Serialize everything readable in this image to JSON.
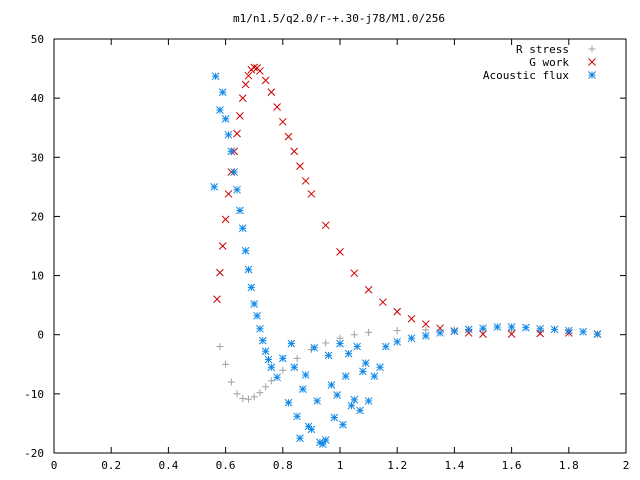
{
  "chart_data": {
    "type": "scatter",
    "title": "m1/n1.5/q2.0/r-+.30-j78/M1.0/256",
    "xlabel": "",
    "ylabel": "",
    "xlim": [
      0,
      2
    ],
    "ylim": [
      -20,
      50
    ],
    "x_ticks": [
      0,
      0.2,
      0.4,
      0.6,
      0.8,
      1,
      1.2,
      1.4,
      1.6,
      1.8,
      2
    ],
    "x_tick_labels": [
      "0",
      "0.2",
      "0.4",
      "0.6",
      "0.8",
      "1",
      "1.2",
      "1.4",
      "1.6",
      "1.8",
      "2"
    ],
    "y_ticks": [
      -20,
      -10,
      0,
      10,
      20,
      30,
      40,
      50
    ],
    "y_tick_labels": [
      "-20",
      "-10",
      "0",
      "10",
      "20",
      "30",
      "40",
      "50"
    ],
    "grid": false,
    "legend_position": "top-right",
    "series": [
      {
        "name": "R stress",
        "marker": "plus",
        "color": "#a0a0a0",
        "x": [
          0.58,
          0.6,
          0.62,
          0.64,
          0.66,
          0.68,
          0.7,
          0.72,
          0.74,
          0.76,
          0.8,
          0.85,
          0.9,
          0.95,
          1.0,
          1.05,
          1.1,
          1.2,
          1.3,
          1.4,
          1.5,
          1.6,
          1.7,
          1.8,
          1.9
        ],
        "y": [
          -2,
          -5,
          -8,
          -10,
          -10.8,
          -10.9,
          -10.5,
          -9.8,
          -8.8,
          -7.8,
          -6,
          -4,
          -2.5,
          -1.4,
          -0.6,
          0,
          0.4,
          0.7,
          0.8,
          0.8,
          0.8,
          0.7,
          0.5,
          0.3,
          0.1
        ]
      },
      {
        "name": "G work",
        "marker": "cross",
        "color": "#cc0000",
        "x": [
          0.57,
          0.58,
          0.59,
          0.6,
          0.61,
          0.62,
          0.63,
          0.64,
          0.65,
          0.66,
          0.67,
          0.68,
          0.69,
          0.7,
          0.71,
          0.72,
          0.74,
          0.76,
          0.78,
          0.8,
          0.82,
          0.84,
          0.86,
          0.88,
          0.9,
          0.95,
          1.0,
          1.05,
          1.1,
          1.15,
          1.2,
          1.25,
          1.3,
          1.35,
          1.4,
          1.45,
          1.5,
          1.6,
          1.7,
          1.8,
          1.9
        ],
        "y": [
          6,
          10.5,
          15,
          19.5,
          23.8,
          27.5,
          31,
          34,
          37,
          40,
          42.3,
          43.8,
          44.8,
          45.2,
          45.1,
          44.6,
          43,
          41,
          38.5,
          36,
          33.5,
          31,
          28.5,
          26,
          23.8,
          18.5,
          14,
          10.4,
          7.6,
          5.5,
          3.9,
          2.7,
          1.8,
          1.1,
          0.6,
          0.3,
          0.1,
          0.1,
          0.2,
          0.3,
          0.1
        ]
      },
      {
        "name": "Acoustic flux",
        "marker": "star",
        "color": "#0f87e6",
        "x": [
          0.56,
          0.565,
          0.58,
          0.59,
          0.6,
          0.61,
          0.62,
          0.63,
          0.64,
          0.65,
          0.66,
          0.67,
          0.68,
          0.69,
          0.7,
          0.71,
          0.72,
          0.73,
          0.74,
          0.75,
          0.76,
          0.78,
          0.8,
          0.82,
          0.83,
          0.84,
          0.85,
          0.86,
          0.87,
          0.88,
          0.89,
          0.9,
          0.91,
          0.92,
          0.93,
          0.94,
          0.95,
          0.96,
          0.97,
          0.98,
          0.99,
          1.0,
          1.01,
          1.02,
          1.03,
          1.04,
          1.05,
          1.06,
          1.07,
          1.08,
          1.09,
          1.1,
          1.12,
          1.14,
          1.16,
          1.2,
          1.25,
          1.3,
          1.35,
          1.4,
          1.45,
          1.5,
          1.55,
          1.6,
          1.65,
          1.7,
          1.75,
          1.8,
          1.85,
          1.9
        ],
        "y": [
          25,
          43.7,
          38,
          41,
          36.5,
          33.8,
          31,
          27.5,
          24.5,
          21,
          18,
          14.2,
          11,
          8,
          5.2,
          3.2,
          1,
          -1,
          -2.8,
          -4.2,
          -5.5,
          -7.2,
          -4,
          -11.5,
          -1.5,
          -5.5,
          -13.8,
          -17.5,
          -9.2,
          -6.8,
          -15.5,
          -16,
          -2.2,
          -11.2,
          -18.2,
          -18.5,
          -17.8,
          -3.5,
          -8.5,
          -14,
          -10.2,
          -1.5,
          -15.2,
          -7,
          -3.2,
          -12,
          -11,
          -2,
          -12.8,
          -6.2,
          -4.8,
          -11.2,
          -7,
          -5.5,
          -2,
          -1.2,
          -0.6,
          -0.2,
          0.3,
          0.6,
          0.9,
          1.1,
          1.3,
          1.3,
          1.2,
          1.0,
          0.9,
          0.7,
          0.5,
          0.1
        ]
      }
    ]
  }
}
